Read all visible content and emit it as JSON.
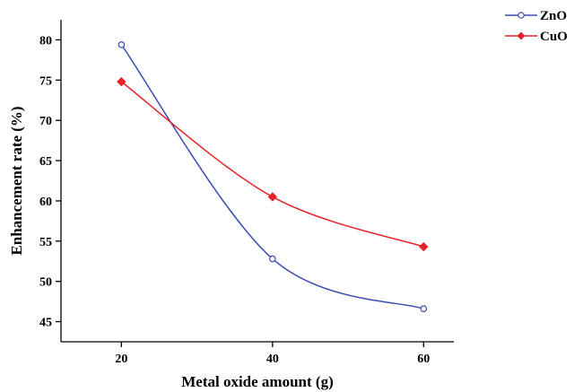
{
  "chart_data": {
    "type": "line",
    "title": "",
    "xlabel": "Metal oxide amount (g)",
    "ylabel": "Enhancement rate (%)",
    "x": [
      20,
      40,
      60
    ],
    "x_ticks": [
      "20",
      "40",
      "60"
    ],
    "y_ticks": [
      "45",
      "50",
      "55",
      "60",
      "65",
      "70",
      "75",
      "80"
    ],
    "xlim": [
      12,
      64
    ],
    "ylim": [
      42.5,
      82.5
    ],
    "grid": false,
    "legend_position": "top-right",
    "smooth": true,
    "series": [
      {
        "name": "ZnO",
        "values": [
          79.4,
          52.8,
          46.6
        ],
        "color": "#3a4bb0",
        "marker": "open-circle"
      },
      {
        "name": "CuO",
        "values": [
          74.8,
          60.5,
          54.3
        ],
        "color": "#e8222a",
        "marker": "filled-diamond"
      }
    ]
  }
}
